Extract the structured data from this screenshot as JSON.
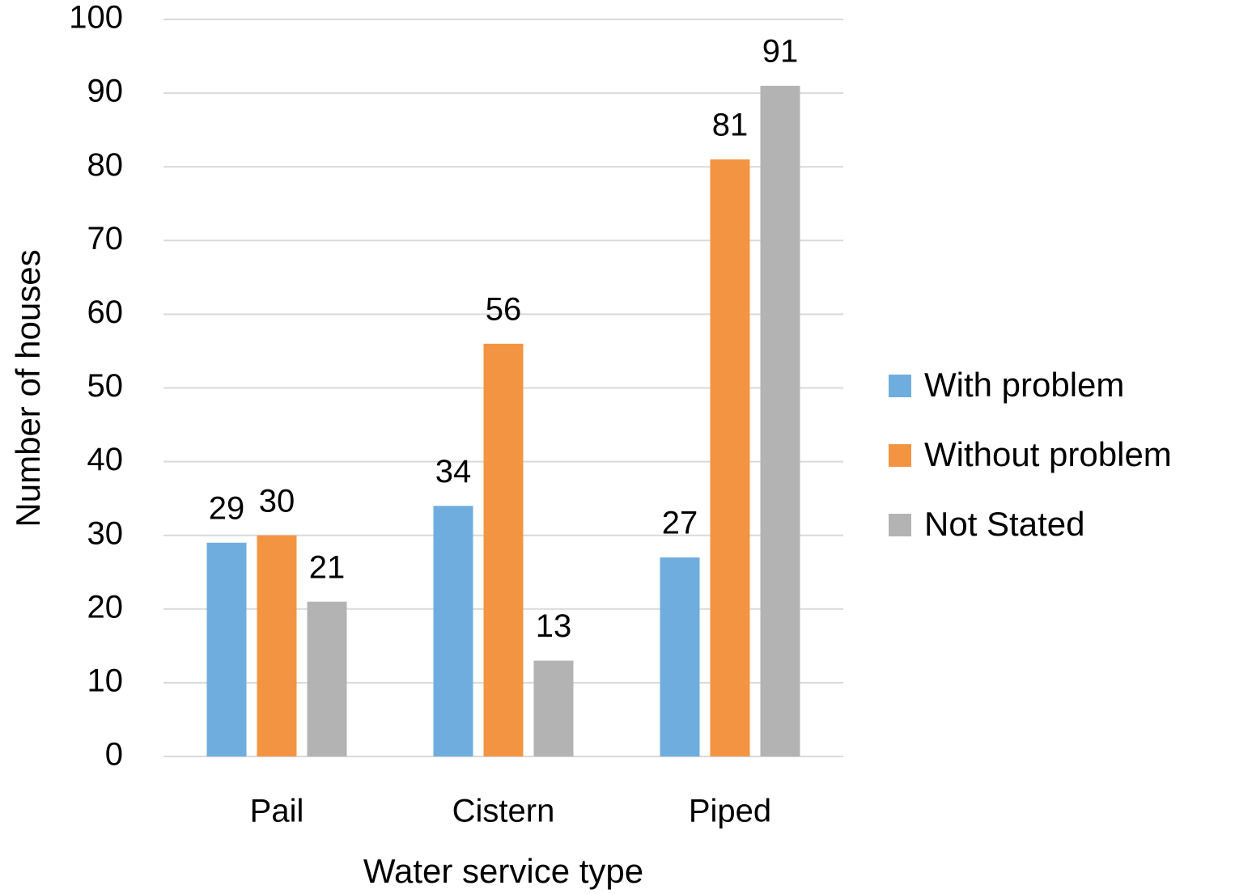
{
  "chart_data": {
    "type": "bar",
    "xlabel": "Water service type",
    "ylabel": "Number of houses",
    "categories": [
      "Pail",
      "Cistern",
      "Piped"
    ],
    "series": [
      {
        "name": "With problem",
        "color": "#6fadde",
        "values": [
          29,
          34,
          27
        ]
      },
      {
        "name": "Without problem",
        "color": "#f39442",
        "values": [
          30,
          56,
          81
        ]
      },
      {
        "name": "Not Stated",
        "color": "#b3b3b3",
        "values": [
          21,
          13,
          91
        ]
      }
    ],
    "ylim": [
      0,
      100
    ],
    "yticks": [
      0,
      10,
      20,
      30,
      40,
      50,
      60,
      70,
      80,
      90,
      100
    ],
    "grid": true,
    "legend": "right"
  }
}
